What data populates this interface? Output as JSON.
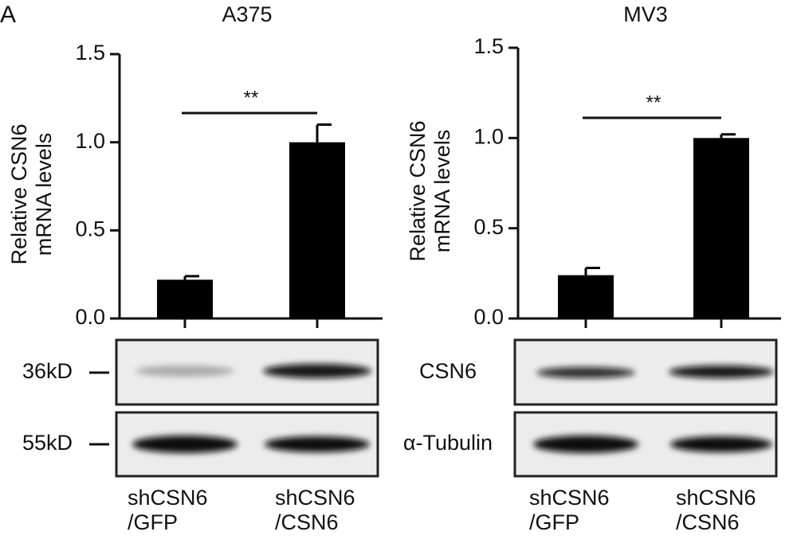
{
  "panel_label": "A",
  "chart_data": [
    {
      "type": "bar",
      "title": "A375",
      "ylabel": "Relative CSN6\nmRNA levels",
      "categories": [
        "shCSN6\n/GFP",
        "shCSN6\n/CSN6"
      ],
      "values": [
        0.22,
        1.0
      ],
      "errors": [
        0.02,
        0.1
      ],
      "color": "#000000",
      "ylim": [
        0,
        1.5
      ],
      "yticks": [
        {
          "value": 0,
          "label": "0.0"
        },
        {
          "value": 0.5,
          "label": "0.5"
        },
        {
          "value": 1,
          "label": "1.0"
        },
        {
          "value": 1.5,
          "label": "1.5"
        }
      ],
      "significance": "**"
    },
    {
      "type": "bar",
      "title": "MV3",
      "ylabel": "Relative CSN6\nmRNA levels",
      "categories": [
        "shCSN6\n/GFP",
        "shCSN6\n/CSN6"
      ],
      "values": [
        0.24,
        1.0
      ],
      "errors": [
        0.04,
        0.02
      ],
      "color": "#000000",
      "ylim": [
        0,
        1.5
      ],
      "yticks": [
        {
          "value": 0,
          "label": "0.0"
        },
        {
          "value": 0.5,
          "label": "0.5"
        },
        {
          "value": 1,
          "label": "1.0"
        },
        {
          "value": 1.5,
          "label": "1.5"
        }
      ],
      "significance": "**"
    }
  ],
  "blot": {
    "left_labels": [
      "36kD",
      "55kD"
    ],
    "right_labels": [
      "CSN6",
      "α-Tubulin"
    ]
  }
}
